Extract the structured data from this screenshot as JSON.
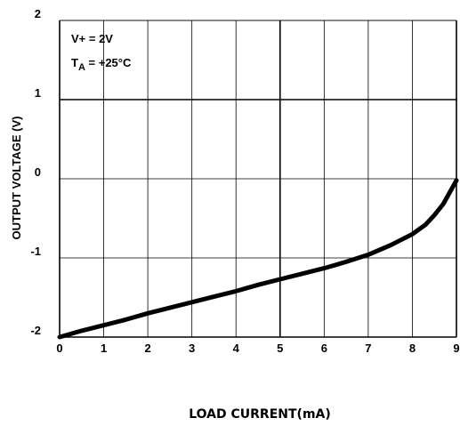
{
  "chart_data": {
    "type": "line",
    "xlabel": "LOAD CURRENT(mA)",
    "ylabel": "OUTPUT VOLTAGE (V)",
    "xlim": [
      0,
      9
    ],
    "ylim": [
      -2,
      2
    ],
    "x_ticks": [
      "0",
      "1",
      "2",
      "3",
      "4",
      "5",
      "6",
      "7",
      "8",
      "9"
    ],
    "y_ticks": [
      "-2",
      "-1",
      "0",
      "1",
      "2"
    ],
    "grid": true,
    "annotations": {
      "supply": "V+ = 2V",
      "temp_main": "T",
      "temp_sub": "A",
      "temp_rest": " = +25°C"
    },
    "series": [
      {
        "x": [
          0,
          0.5,
          1,
          1.5,
          2,
          2.5,
          3,
          3.5,
          4,
          4.5,
          5,
          5.5,
          6,
          6.5,
          7,
          7.5,
          8,
          8.3,
          8.5,
          8.7,
          9
        ],
        "y": [
          -2.0,
          -1.92,
          -1.85,
          -1.78,
          -1.7,
          -1.63,
          -1.56,
          -1.49,
          -1.42,
          -1.34,
          -1.27,
          -1.2,
          -1.13,
          -1.05,
          -0.96,
          -0.84,
          -0.7,
          -0.58,
          -0.46,
          -0.32,
          -0.02
        ]
      }
    ]
  }
}
